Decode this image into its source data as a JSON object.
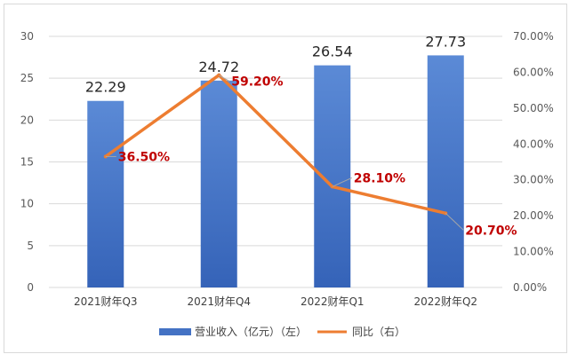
{
  "chart_data": {
    "type": "bar+line",
    "categories": [
      "2021财年Q3",
      "2021财年Q4",
      "2022财年Q1",
      "2022财年Q2"
    ],
    "series": [
      {
        "name": "营业收入（亿元）（左）",
        "type": "bar",
        "axis": "left",
        "values": [
          22.29,
          24.72,
          26.54,
          27.73
        ],
        "labels": [
          "22.29",
          "24.72",
          "26.54",
          "27.73"
        ],
        "color": "#4472C4"
      },
      {
        "name": "同比（右）",
        "type": "line",
        "axis": "right",
        "values": [
          36.5,
          59.2,
          28.1,
          20.7
        ],
        "labels": [
          "36.50%",
          "59.20%",
          "28.10%",
          "20.70%"
        ],
        "color": "#ED7D31"
      }
    ],
    "left_axis": {
      "ylim": [
        0,
        30
      ],
      "ticks": [
        "0",
        "5",
        "10",
        "15",
        "20",
        "25",
        "30"
      ]
    },
    "right_axis": {
      "ylim": [
        0,
        70
      ],
      "ticks": [
        "0.00%",
        "10.00%",
        "20.00%",
        "30.00%",
        "40.00%",
        "50.00%",
        "60.00%",
        "70.00%"
      ]
    },
    "label_color": "#C00000",
    "grid_color": "#d9d9d9",
    "legend_position": "bottom"
  }
}
